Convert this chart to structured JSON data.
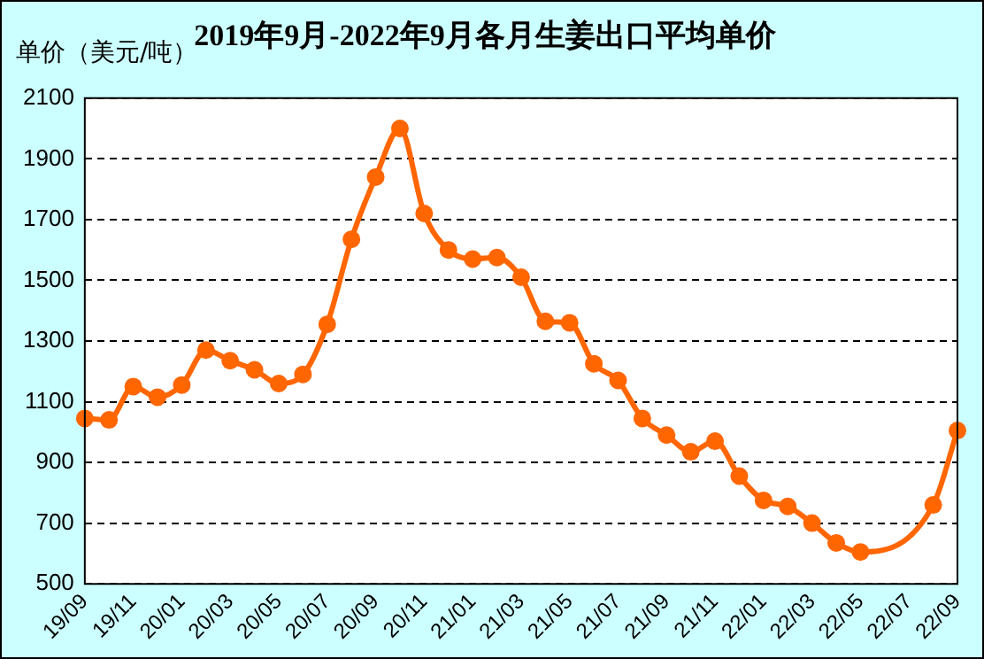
{
  "chart_data": {
    "type": "line",
    "title": "2019年9月-2022年9月各月生姜出口平均单价",
    "ylabel": "单价（美元/吨）",
    "categories": [
      "19/09",
      null,
      "19/11",
      null,
      "20/01",
      null,
      "20/03",
      null,
      "20/05",
      null,
      "20/07",
      null,
      "20/09",
      null,
      "20/11",
      null,
      "21/01",
      null,
      "21/03",
      null,
      "21/05",
      null,
      "21/07",
      null,
      "21/09",
      null,
      "21/11",
      null,
      "22/01",
      null,
      "22/03",
      null,
      "22/05",
      null,
      "22/07",
      null,
      "22/09"
    ],
    "series": [
      {
        "color": "#ff6600",
        "values": [
          1045,
          1040,
          1150,
          1115,
          1155,
          1270,
          1235,
          1205,
          1160,
          1190,
          1355,
          1635,
          1840,
          2000,
          1720,
          1600,
          1570,
          1575,
          1510,
          1365,
          1360,
          1225,
          1170,
          1045,
          990,
          935,
          970,
          855,
          775,
          755,
          700,
          635,
          605,
          null,
          null,
          760,
          1005
        ]
      }
    ],
    "ylim": [
      500,
      2100
    ],
    "yticks": [
      500,
      700,
      900,
      1100,
      1300,
      1500,
      1700,
      1900,
      2100
    ],
    "grid": "y",
    "legend": false,
    "marker": "circle",
    "line_style": "solid"
  }
}
